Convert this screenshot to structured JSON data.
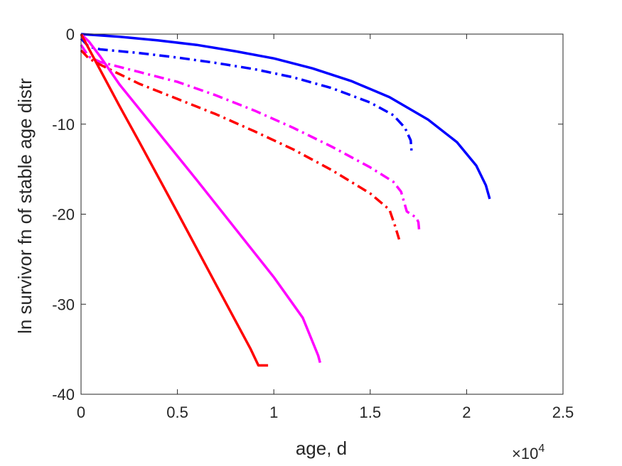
{
  "chart_data": {
    "type": "line",
    "title": "",
    "xlabel": "age, d",
    "ylabel": "ln survivor fn of stable age distr",
    "xlim": [
      0,
      25000
    ],
    "ylim": [
      -40,
      0
    ],
    "x_exponent_label": "×10",
    "x_exponent_power": "4",
    "x_tick_values": [
      0,
      5000,
      10000,
      15000,
      20000,
      25000
    ],
    "x_tick_labels": [
      "0",
      "0.5",
      "1",
      "1.5",
      "2",
      "2.5"
    ],
    "y_tick_values": [
      0,
      -10,
      -20,
      -30,
      -40
    ],
    "y_tick_labels": [
      "0",
      "-10",
      "-20",
      "-30",
      "-40"
    ],
    "grid": false,
    "series": [
      {
        "color": "#0000ff",
        "style": "solid",
        "points": [
          [
            0,
            0
          ],
          [
            2000,
            -0.3
          ],
          [
            4000,
            -0.7
          ],
          [
            6000,
            -1.2
          ],
          [
            8000,
            -1.9
          ],
          [
            10000,
            -2.7
          ],
          [
            12000,
            -3.8
          ],
          [
            14000,
            -5.2
          ],
          [
            16000,
            -7.0
          ],
          [
            18000,
            -9.5
          ],
          [
            19500,
            -12.0
          ],
          [
            20500,
            -14.6
          ],
          [
            21000,
            -16.8
          ],
          [
            21200,
            -18.3
          ]
        ]
      },
      {
        "color": "#0000ff",
        "style": "dashdot",
        "points": [
          [
            0,
            -0.5
          ],
          [
            400,
            -1.4
          ],
          [
            1000,
            -1.7
          ],
          [
            3000,
            -2.1
          ],
          [
            5000,
            -2.6
          ],
          [
            7000,
            -3.2
          ],
          [
            9000,
            -3.9
          ],
          [
            11000,
            -4.8
          ],
          [
            13000,
            -6.0
          ],
          [
            15000,
            -7.6
          ],
          [
            16200,
            -9.0
          ],
          [
            16800,
            -10.4
          ],
          [
            17100,
            -11.8
          ],
          [
            17150,
            -13.2
          ]
        ]
      },
      {
        "color": "#ff00ff",
        "style": "dashdot",
        "points": [
          [
            0,
            -1.2
          ],
          [
            400,
            -2.5
          ],
          [
            1000,
            -3.1
          ],
          [
            3000,
            -4.2
          ],
          [
            5000,
            -5.3
          ],
          [
            7000,
            -6.8
          ],
          [
            9000,
            -8.5
          ],
          [
            11000,
            -10.4
          ],
          [
            13000,
            -12.5
          ],
          [
            15000,
            -14.8
          ],
          [
            16200,
            -16.4
          ],
          [
            16600,
            -17.5
          ],
          [
            16900,
            -19.7
          ],
          [
            17400,
            -20.4
          ],
          [
            17500,
            -20.9
          ],
          [
            17550,
            -22.1
          ]
        ]
      },
      {
        "color": "#ff0000",
        "style": "dashdot",
        "points": [
          [
            0,
            -1.8
          ],
          [
            400,
            -2.7
          ],
          [
            1000,
            -3.4
          ],
          [
            3000,
            -5.5
          ],
          [
            5000,
            -7.2
          ],
          [
            7000,
            -8.9
          ],
          [
            9000,
            -10.8
          ],
          [
            11000,
            -12.8
          ],
          [
            13000,
            -15.1
          ],
          [
            15000,
            -17.7
          ],
          [
            16000,
            -19.5
          ],
          [
            16300,
            -21.4
          ],
          [
            16500,
            -22.8
          ]
        ]
      },
      {
        "color": "#ff00ff",
        "style": "solid",
        "points": [
          [
            0,
            0
          ],
          [
            400,
            -0.8
          ],
          [
            1000,
            -2.5
          ],
          [
            2000,
            -5.6
          ],
          [
            4000,
            -10.9
          ],
          [
            6000,
            -16.2
          ],
          [
            8000,
            -21.6
          ],
          [
            10000,
            -27.0
          ],
          [
            11500,
            -31.5
          ],
          [
            12300,
            -35.7
          ],
          [
            12400,
            -36.5
          ]
        ]
      },
      {
        "color": "#ff0000",
        "style": "solid",
        "points": [
          [
            0,
            0
          ],
          [
            1000,
            -4.0
          ],
          [
            2000,
            -8.0
          ],
          [
            3000,
            -11.9
          ],
          [
            5000,
            -19.8
          ],
          [
            7000,
            -27.8
          ],
          [
            8800,
            -35.0
          ],
          [
            9200,
            -36.8
          ],
          [
            9700,
            -36.8
          ]
        ]
      }
    ]
  }
}
